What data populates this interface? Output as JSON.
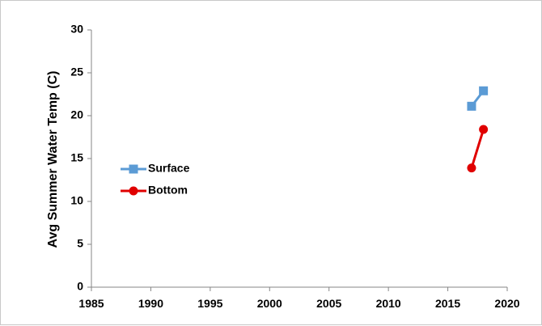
{
  "chart_data": {
    "type": "line",
    "title": "",
    "xlabel": "",
    "ylabel": "Avg Summer Water Temp (C)",
    "xlim": [
      1985,
      2020
    ],
    "ylim": [
      0,
      30
    ],
    "xticks": [
      "1985",
      "1990",
      "1995",
      "2000",
      "2005",
      "2010",
      "2015",
      "2020"
    ],
    "yticks": [
      "0",
      "5",
      "10",
      "15",
      "20",
      "25",
      "30"
    ],
    "grid": false,
    "legend_position": "left-middle",
    "series": [
      {
        "name": "Surface",
        "color": "#5b9bd5",
        "marker": "square",
        "x": [
          2017,
          2018
        ],
        "y": [
          21.1,
          22.9
        ]
      },
      {
        "name": "Bottom",
        "color": "#e00000",
        "marker": "circle",
        "x": [
          2017,
          2018
        ],
        "y": [
          13.9,
          18.4
        ]
      }
    ]
  }
}
